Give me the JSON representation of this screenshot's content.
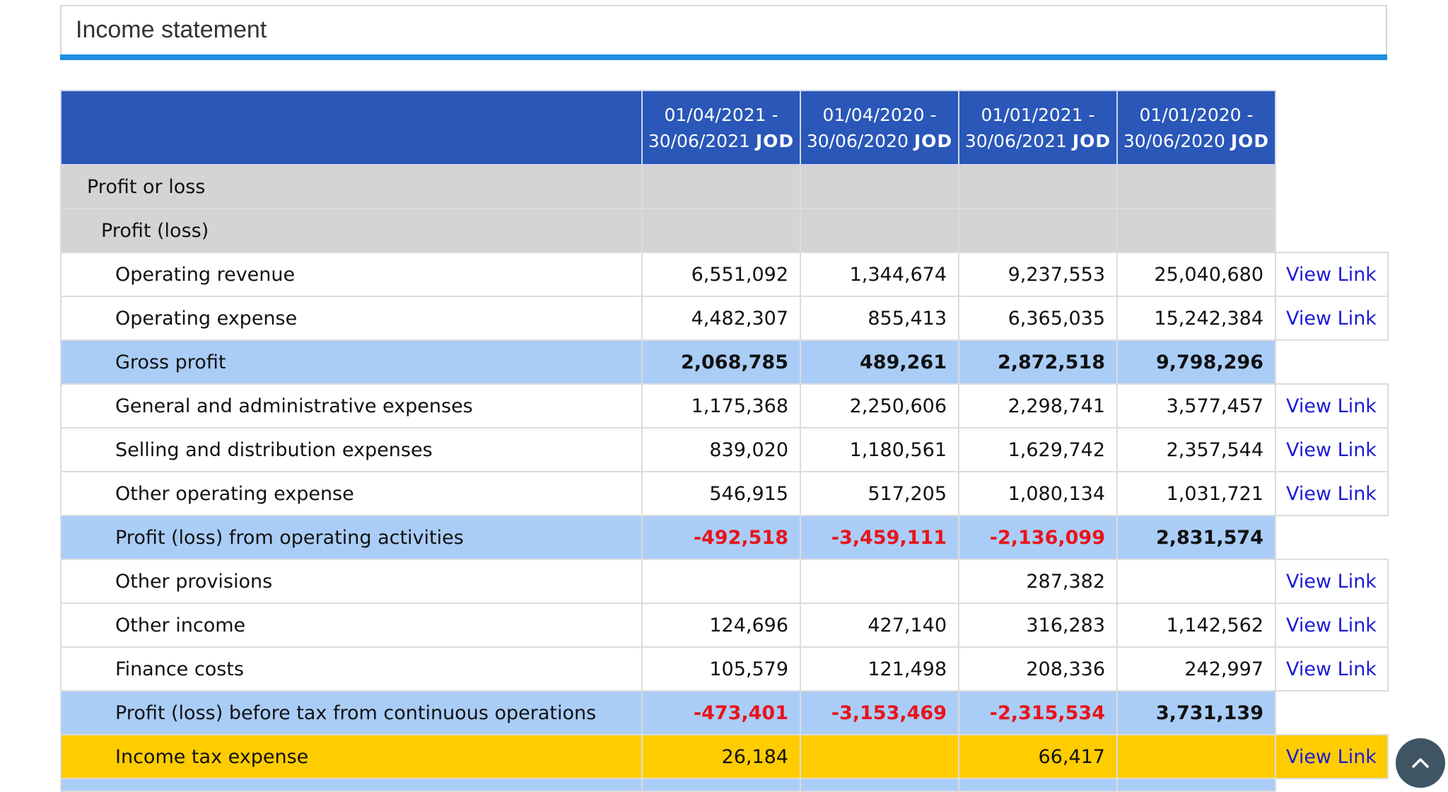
{
  "panel": {
    "title": "Income statement"
  },
  "table": {
    "columns": [
      {
        "line1": "01/04/2021 -",
        "line2": "30/06/2021",
        "unit": "JOD"
      },
      {
        "line1": "01/04/2020 -",
        "line2": "30/06/2020",
        "unit": "JOD"
      },
      {
        "line1": "01/01/2021 -",
        "line2": "30/06/2021",
        "unit": "JOD"
      },
      {
        "line1": "01/01/2020 -",
        "line2": "30/06/2020",
        "unit": "JOD"
      }
    ],
    "rows": [
      {
        "label": "Profit or loss",
        "type": "section",
        "level": 0,
        "values": [
          "",
          "",
          "",
          ""
        ],
        "link": ""
      },
      {
        "label": "Profit (loss)",
        "type": "section",
        "level": 1,
        "values": [
          "",
          "",
          "",
          ""
        ],
        "link": ""
      },
      {
        "label": "Operating revenue",
        "type": "item",
        "level": 2,
        "values": [
          "6,551,092",
          "1,344,674",
          "9,237,553",
          "25,040,680"
        ],
        "link": "View Link"
      },
      {
        "label": "Operating expense",
        "type": "item",
        "level": 2,
        "values": [
          "4,482,307",
          "855,413",
          "6,365,035",
          "15,242,384"
        ],
        "link": "View Link"
      },
      {
        "label": "Gross profit",
        "type": "subtotal",
        "level": 2,
        "values": [
          "2,068,785",
          "489,261",
          "2,872,518",
          "9,798,296"
        ],
        "link": ""
      },
      {
        "label": "General and administrative expenses",
        "type": "item",
        "level": 2,
        "values": [
          "1,175,368",
          "2,250,606",
          "2,298,741",
          "3,577,457"
        ],
        "link": "View Link"
      },
      {
        "label": "Selling and distribution expenses",
        "type": "item",
        "level": 2,
        "values": [
          "839,020",
          "1,180,561",
          "1,629,742",
          "2,357,544"
        ],
        "link": "View Link"
      },
      {
        "label": "Other operating expense",
        "type": "item",
        "level": 2,
        "values": [
          "546,915",
          "517,205",
          "1,080,134",
          "1,031,721"
        ],
        "link": "View Link"
      },
      {
        "label": "Profit (loss) from operating activities",
        "type": "subtotal",
        "level": 2,
        "values": [
          "-492,518",
          "-3,459,111",
          "-2,136,099",
          "2,831,574"
        ],
        "link": ""
      },
      {
        "label": "Other provisions",
        "type": "item",
        "level": 2,
        "values": [
          "",
          "",
          "287,382",
          ""
        ],
        "link": "View Link"
      },
      {
        "label": "Other income",
        "type": "item",
        "level": 2,
        "values": [
          "124,696",
          "427,140",
          "316,283",
          "1,142,562"
        ],
        "link": "View Link"
      },
      {
        "label": "Finance costs",
        "type": "item",
        "level": 2,
        "values": [
          "105,579",
          "121,498",
          "208,336",
          "242,997"
        ],
        "link": "View Link"
      },
      {
        "label": "Profit (loss) before tax from continuous operations",
        "type": "subtotal",
        "level": 2,
        "values": [
          "-473,401",
          "-3,153,469",
          "-2,315,534",
          "3,731,139"
        ],
        "link": ""
      },
      {
        "label": "Income tax expense",
        "type": "highlight",
        "level": 2,
        "values": [
          "26,184",
          "",
          "66,417",
          ""
        ],
        "link": "View Link"
      }
    ]
  },
  "scroll_button": {
    "icon": "chevron-up-icon"
  },
  "colors": {
    "header_blue": "#2a57b8",
    "accent_rule": "#1e8fe0",
    "subtotal_bg": "#aacdf7",
    "section_bg": "#d4d4d4",
    "highlight_bg": "#ffcc00",
    "negative": "#e8141b",
    "link": "#1a1ad6"
  }
}
